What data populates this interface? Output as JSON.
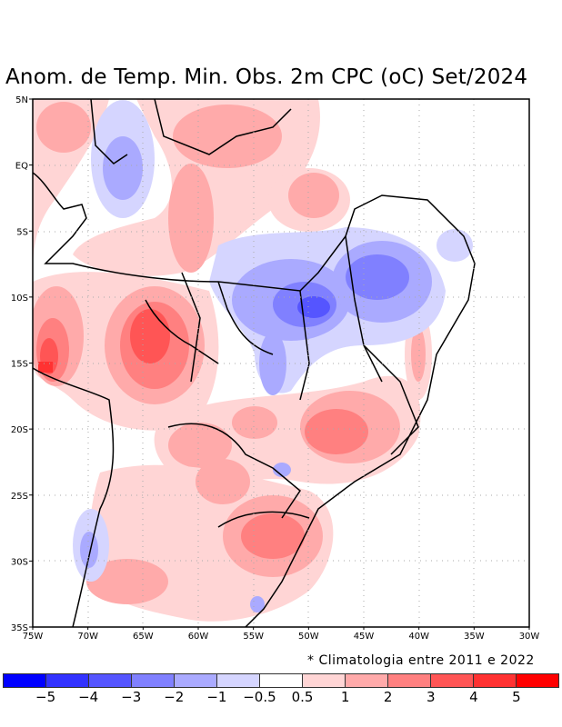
{
  "title": "Anom. de Temp. Min. Obs. 2m CPC (oC) Set/2024",
  "note": "* Climatologia entre 2011 e 2022",
  "map": {
    "lon_range": [
      -75,
      -30
    ],
    "lat_range": [
      -35,
      5
    ],
    "x_tick_labels": [
      "75W",
      "70W",
      "65W",
      "60W",
      "55W",
      "50W",
      "45W",
      "40W",
      "35W",
      "30W"
    ],
    "y_tick_labels": [
      "5N",
      "EQ",
      "5S",
      "10S",
      "15S",
      "20S",
      "25S",
      "30S",
      "35S"
    ]
  },
  "colorbar": {
    "colors": [
      "#0000ff",
      "#3232ff",
      "#5555ff",
      "#8080ff",
      "#aaaaff",
      "#d5d5ff",
      "#ffffff",
      "#ffd5d5",
      "#ffaaaa",
      "#ff8080",
      "#ff5555",
      "#ff3232",
      "#ff0000"
    ],
    "labels": [
      "−5",
      "−4",
      "−3",
      "−2",
      "−1",
      "−0.5",
      "0.5",
      "1",
      "2",
      "3",
      "4",
      "5"
    ]
  }
}
